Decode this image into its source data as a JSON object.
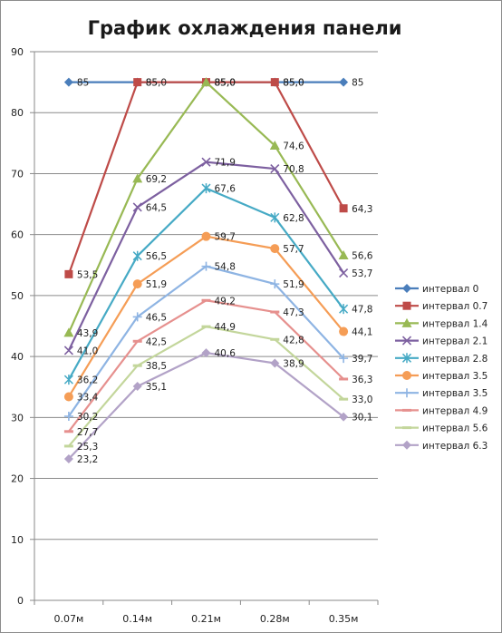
{
  "chart_data": {
    "type": "line",
    "title": "График охлаждения панели",
    "categories": [
      "0.07м",
      "0.14м",
      "0.21м",
      "0.28м",
      "0.35м"
    ],
    "ylim": [
      0,
      90
    ],
    "yticks": [
      0,
      10,
      20,
      30,
      40,
      50,
      60,
      70,
      80,
      90
    ],
    "grid": true,
    "legend_position": "right",
    "series": [
      {
        "name": "интервал 0",
        "color": "#4A7EBB",
        "marker": "diamond",
        "values": [
          85,
          85,
          85,
          85,
          85
        ],
        "labels": [
          "85",
          "85",
          "85,0",
          "85,0",
          "85"
        ]
      },
      {
        "name": "интервал 0.7",
        "color": "#BE4B48",
        "marker": "square",
        "values": [
          53.5,
          85.0,
          85.0,
          85.0,
          64.3
        ],
        "labels": [
          "53,5",
          "85,0",
          "85,0",
          "85,0",
          "64,3"
        ]
      },
      {
        "name": "интервал 1.4",
        "color": "#98B954",
        "marker": "triangle",
        "values": [
          43.9,
          69.2,
          85.0,
          74.6,
          56.6
        ],
        "labels": [
          "43,9",
          "69,2",
          "85,0",
          "74,6",
          "56,6"
        ]
      },
      {
        "name": "интервал 2.1",
        "color": "#7D60A0",
        "marker": "x",
        "values": [
          41.0,
          64.5,
          71.9,
          70.8,
          53.7
        ],
        "labels": [
          "41,0",
          "64,5",
          "71,9",
          "70,8",
          "53,7"
        ]
      },
      {
        "name": "интервал 2.8",
        "color": "#46AAC5",
        "marker": "star",
        "values": [
          36.2,
          56.5,
          67.6,
          62.8,
          47.8
        ],
        "labels": [
          "36,2",
          "56,5",
          "67,6",
          "62,8",
          "47,8"
        ]
      },
      {
        "name": "интервал 3.5",
        "color": "#F59D56",
        "marker": "circle",
        "values": [
          33.4,
          51.9,
          59.7,
          57.7,
          44.1
        ],
        "labels": [
          "33,4",
          "51,9",
          "59,7",
          "57,7",
          "44,1"
        ]
      },
      {
        "name": "интервал 3.5",
        "color": "#8EB4E3",
        "marker": "plus",
        "values": [
          30.2,
          46.5,
          54.8,
          51.9,
          39.7
        ],
        "labels": [
          "30,2",
          "46,5",
          "54,8",
          "51,9",
          "39,7"
        ]
      },
      {
        "name": "интервал 4.9",
        "color": "#E6908E",
        "marker": "dash",
        "values": [
          27.7,
          42.5,
          49.2,
          47.3,
          36.3
        ],
        "labels": [
          "27,7",
          "42,5",
          "49,2",
          "47,3",
          "36,3"
        ]
      },
      {
        "name": "интервал 5.6",
        "color": "#C3D69B",
        "marker": "dash",
        "values": [
          25.3,
          38.5,
          44.9,
          42.8,
          33.0
        ],
        "labels": [
          "25,3",
          "38,5",
          "44,9",
          "42,8",
          "33,0"
        ]
      },
      {
        "name": "интервал 6.3",
        "color": "#B2A2C7",
        "marker": "diamond",
        "values": [
          23.2,
          35.1,
          40.6,
          38.9,
          30.1
        ],
        "labels": [
          "23,2",
          "35,1",
          "40,6",
          "38,9",
          "30,1"
        ]
      }
    ]
  }
}
